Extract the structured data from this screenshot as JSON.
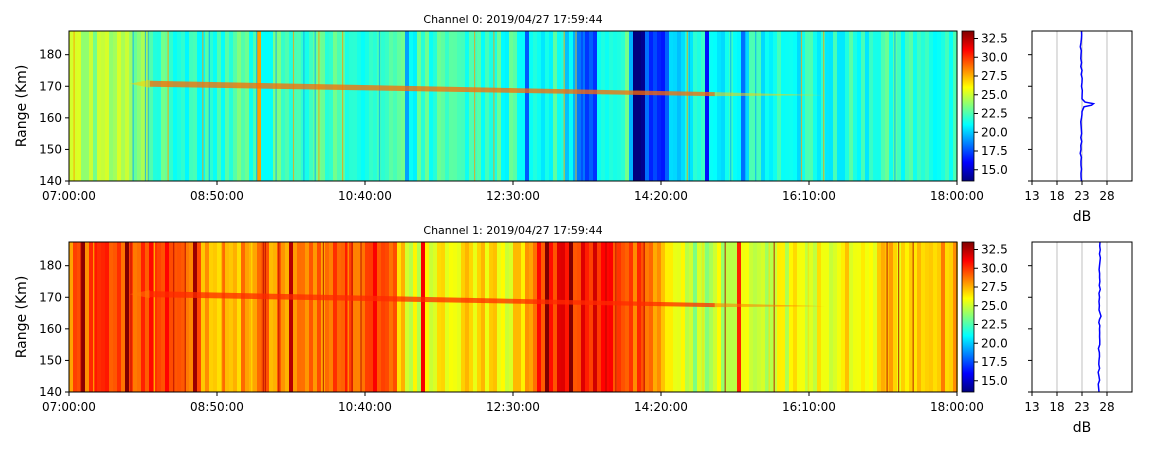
{
  "chart_data": [
    {
      "type": "heatmap",
      "title": "Channel 0: 2019/04/27 17:59:44",
      "xlabel": "",
      "ylabel": "Range (Km)",
      "x_range": [
        "07:00:00",
        "18:00:00"
      ],
      "x_ticks": [
        "07:00:00",
        "08:50:00",
        "10:40:00",
        "12:30:00",
        "14:20:00",
        "16:10:00",
        "18:00:00"
      ],
      "ylim": [
        140,
        187.5
      ],
      "y_ticks": [
        140,
        150,
        160,
        170,
        180
      ],
      "colorbar": {
        "range": [
          13.5,
          33.5
        ],
        "ticks": [
          "15.0",
          "17.5",
          "20.0",
          "22.5",
          "25.0",
          "27.5",
          "30.0",
          "32.5"
        ],
        "colormap": "jet"
      },
      "layer": {
        "range_km_start": 170.8,
        "range_km_end": 167.5,
        "x_start": "08:00:00",
        "x_end": "15:00:00"
      },
      "profile": {
        "xlabel": "dB",
        "xlim": [
          13,
          33
        ],
        "x_ticks": [
          13,
          18,
          23,
          28
        ],
        "grid": true,
        "ranges_km": [
          140,
          150,
          160,
          162,
          163.5,
          164,
          164.5,
          165,
          166,
          170,
          180,
          187.5
        ],
        "values_db": [
          22.9,
          22.8,
          22.9,
          23.0,
          23.4,
          24.9,
          25.3,
          23.6,
          23.0,
          22.9,
          22.8,
          22.9
        ]
      }
    },
    {
      "type": "heatmap",
      "title": "Channel 1: 2019/04/27 17:59:44",
      "xlabel": "",
      "ylabel": "Range (Km)",
      "x_range": [
        "07:00:00",
        "18:00:00"
      ],
      "x_ticks": [
        "07:00:00",
        "08:50:00",
        "10:40:00",
        "12:30:00",
        "14:20:00",
        "16:10:00",
        "18:00:00"
      ],
      "ylim": [
        140,
        187.5
      ],
      "y_ticks": [
        140,
        150,
        160,
        170,
        180
      ],
      "colorbar": {
        "range": [
          13.5,
          33.5
        ],
        "ticks": [
          "15.0",
          "17.5",
          "20.0",
          "22.5",
          "25.0",
          "27.5",
          "30.0",
          "32.5"
        ],
        "colormap": "jet"
      },
      "layer": {
        "range_km_start": 171.0,
        "range_km_end": 167.5,
        "x_start": "08:00:00",
        "x_end": "15:00:00"
      },
      "profile": {
        "xlabel": "dB",
        "xlim": [
          13,
          33
        ],
        "x_ticks": [
          13,
          18,
          23,
          28
        ],
        "grid": true,
        "ranges_km": [
          140,
          150,
          160,
          163,
          164,
          165,
          166,
          170,
          180,
          187.5
        ],
        "values_db": [
          26.4,
          26.4,
          26.5,
          26.5,
          26.8,
          26.6,
          26.4,
          26.5,
          26.5,
          26.6
        ]
      }
    }
  ]
}
